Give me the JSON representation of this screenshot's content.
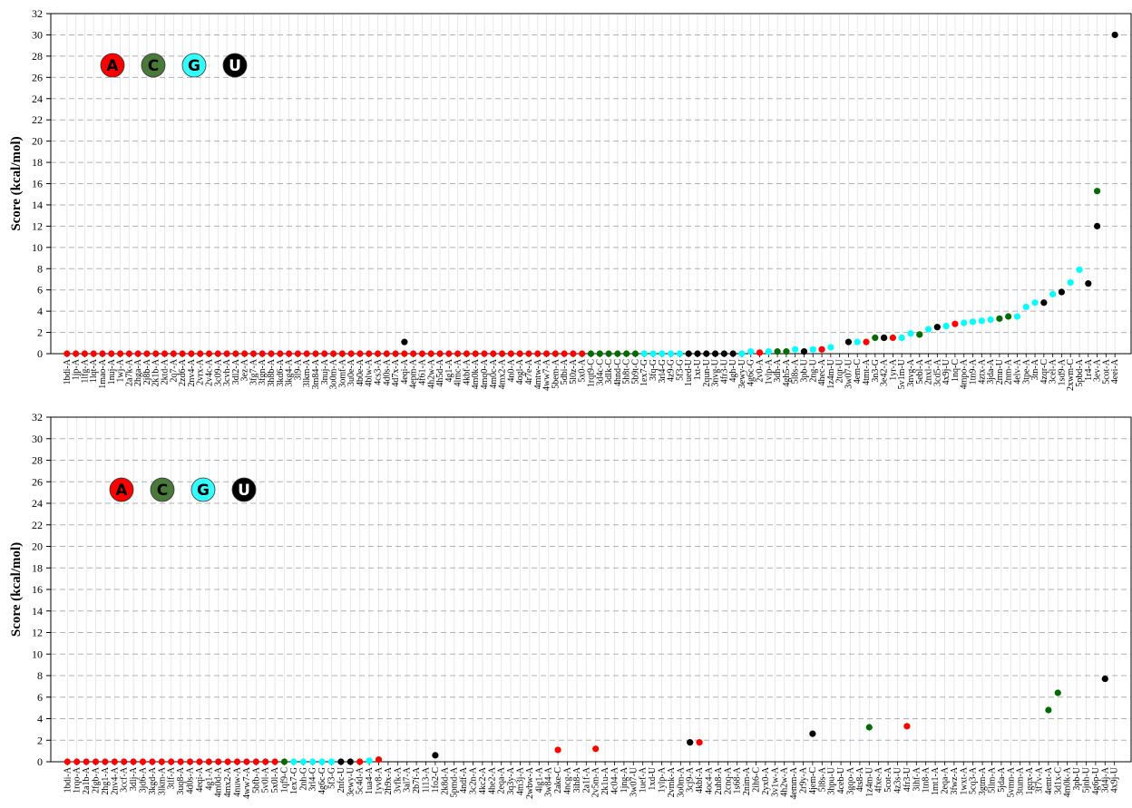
{
  "colors": {
    "A": "#ff0000",
    "C": "#006b00",
    "G": "#00ffff",
    "U": "#000000"
  },
  "legend": {
    "items": [
      {
        "label": "A",
        "color": "#ff0000",
        "text_color": "#000000"
      },
      {
        "label": "C",
        "color": "#4a7a3a",
        "text_color": "#000000"
      },
      {
        "label": "G",
        "color": "#33ffff",
        "text_color": "#000000"
      },
      {
        "label": "U",
        "color": "#000000",
        "text_color": "#ffffff"
      }
    ]
  },
  "chart_data": [
    {
      "type": "scatter",
      "ylabel": "Score (kcal/mol)",
      "ylim": [
        0,
        32
      ],
      "yticks": [
        0,
        2,
        4,
        6,
        8,
        10,
        12,
        14,
        16,
        18,
        20,
        22,
        24,
        26,
        28,
        30,
        32
      ],
      "grid": "horizontal dashed",
      "legend_position": "top-left",
      "categories": [
        "1bdi-A",
        "1jp-A",
        "1lfg-A",
        "1lqt-A",
        "1mao-A",
        "1nuj-A",
        "1wj-A",
        "2a7k-A",
        "2hga-A",
        "2j8b-A",
        "2k1b-A",
        "2ktd-A",
        "2q7-A",
        "2zd6-A",
        "2nv4-A",
        "2vrx-A",
        "2v4c-A",
        "3c09-A",
        "3cvh-A",
        "3dl2-A",
        "3ez-A",
        "3fg7-A",
        "3fgn-A",
        "3h8b-A",
        "3kd6-A",
        "3kg4-A",
        "3l9-A",
        "3lkm-A",
        "3m84-A",
        "3nuj-A",
        "3o0m-A",
        "3omf-A",
        "3u0e-A",
        "4b0e-A",
        "4blw-A",
        "4cs3-A",
        "4d0s-A",
        "4d7x-A",
        "4eqi-A",
        "4epm-A",
        "4f61-A",
        "4h2w-A",
        "4h5d-A",
        "4g1-A",
        "4lmc-A",
        "4kbf-A",
        "4m0k-A",
        "4mq0-A",
        "4m0c-A",
        "4mx2-A",
        "4n0-A",
        "4ogl-A",
        "4r7e-A",
        "4mtw-A",
        "4ww7-A",
        "5bem-A",
        "5dbi-A",
        "5l0z-A",
        "5x0-A",
        "1rqt9-C",
        "3d4c-C",
        "3dlk-C",
        "4hnd-C",
        "5h8t-C",
        "5b9t-C",
        "1ex7-G",
        "3fq-G",
        "3rl4-G",
        "4z9-G",
        "5f3-G",
        "1ued-U",
        "1xt-U",
        "2qun-U",
        "3nvg-U",
        "4fr3-U",
        "4gh-U",
        "3ewy-U",
        "4g6c-G",
        "2v0-A",
        "1vlp-A",
        "3dh-A",
        "4gh5-A",
        "5l8s-A",
        "3pb-U",
        "2ng-U",
        "4hec-A",
        "1z4m-U",
        "2tqr-U",
        "3w07-U",
        "4em-C",
        "4tmt-A",
        "3n3-G",
        "3e42-A",
        "1yr-A",
        "5v1m-U",
        "3nvg-A",
        "5ebl-A",
        "2nxl-A",
        "3cd5-A",
        "4x9j-U",
        "1nq-C",
        "4mpo-A",
        "1tn9-A",
        "4ztx-A",
        "3jda-A",
        "2mn-U",
        "2nm-A",
        "4elv-A",
        "3tpe-A",
        "3tn-A",
        "4zqr-C",
        "3cel-A",
        "1sd9-A",
        "2xwm-C",
        "5pbd-A",
        "1r4-A",
        "3ev-A",
        "5cot-A",
        "4eei-A"
      ],
      "series": [
        {
          "name": "A",
          "color": "#ff0000",
          "points": [
            {
              "x": "1bdi-A",
              "y": 0
            },
            {
              "x": "1jp-A",
              "y": 0
            },
            {
              "x": "1lfg-A",
              "y": 0
            },
            {
              "x": "1lqt-A",
              "y": 0
            },
            {
              "x": "1mao-A",
              "y": 0
            },
            {
              "x": "1nuj-A",
              "y": 0
            },
            {
              "x": "1wj-A",
              "y": 0
            },
            {
              "x": "2a7k-A",
              "y": 0
            },
            {
              "x": "2hga-A",
              "y": 0
            },
            {
              "x": "2j8b-A",
              "y": 0
            },
            {
              "x": "2k1b-A",
              "y": 0
            },
            {
              "x": "2ktd-A",
              "y": 0
            },
            {
              "x": "2q7-A",
              "y": 0
            },
            {
              "x": "2zd6-A",
              "y": 0
            },
            {
              "x": "2nv4-A",
              "y": 0
            },
            {
              "x": "2vrx-A",
              "y": 0
            },
            {
              "x": "2v4c-A",
              "y": 0
            },
            {
              "x": "3c09-A",
              "y": 0
            },
            {
              "x": "3cvh-A",
              "y": 0
            },
            {
              "x": "3dl2-A",
              "y": 0
            },
            {
              "x": "3ez-A",
              "y": 0
            },
            {
              "x": "3fg7-A",
              "y": 0
            },
            {
              "x": "3fgn-A",
              "y": 0
            },
            {
              "x": "3h8b-A",
              "y": 0
            },
            {
              "x": "3kd6-A",
              "y": 0
            },
            {
              "x": "3kg4-A",
              "y": 0
            },
            {
              "x": "3l9-A",
              "y": 0
            },
            {
              "x": "3lkm-A",
              "y": 0
            },
            {
              "x": "3m84-A",
              "y": 0
            },
            {
              "x": "3nuj-A",
              "y": 0
            },
            {
              "x": "3o0m-A",
              "y": 0
            },
            {
              "x": "3omf-A",
              "y": 0
            },
            {
              "x": "3u0e-A",
              "y": 0
            },
            {
              "x": "4b0e-A",
              "y": 0
            },
            {
              "x": "4blw-A",
              "y": 0
            },
            {
              "x": "4cs3-A",
              "y": 0
            },
            {
              "x": "4d0s-A",
              "y": 0
            },
            {
              "x": "4d7x-A",
              "y": 0
            },
            {
              "x": "4eqi-A",
              "y": 0
            },
            {
              "x": "4epm-A",
              "y": 0
            },
            {
              "x": "4f61-A",
              "y": 0
            },
            {
              "x": "4h2w-A",
              "y": 0
            },
            {
              "x": "4h5d-A",
              "y": 0
            },
            {
              "x": "4g1-A",
              "y": 0
            },
            {
              "x": "4lmc-A",
              "y": 0
            },
            {
              "x": "4kbf-A",
              "y": 0
            },
            {
              "x": "4m0k-A",
              "y": 0
            },
            {
              "x": "4mq0-A",
              "y": 0
            },
            {
              "x": "4m0c-A",
              "y": 0
            },
            {
              "x": "4mx2-A",
              "y": 0
            },
            {
              "x": "4n0-A",
              "y": 0
            },
            {
              "x": "4ogl-A",
              "y": 0
            },
            {
              "x": "4r7e-A",
              "y": 0
            },
            {
              "x": "4mtw-A",
              "y": 0
            },
            {
              "x": "4ww7-A",
              "y": 0
            },
            {
              "x": "5bem-A",
              "y": 0
            },
            {
              "x": "5dbi-A",
              "y": 0
            },
            {
              "x": "5l0z-A",
              "y": 0
            },
            {
              "x": "5x0-A",
              "y": 0
            },
            {
              "x": "2v0-A",
              "y": 0.1
            },
            {
              "x": "4hec-A",
              "y": 0.4
            },
            {
              "x": "4tmt-A",
              "y": 1.1
            },
            {
              "x": "3e42-A",
              "y": 1.5
            },
            {
              "x": "1yr-A",
              "y": 1.5
            },
            {
              "x": "1nq-C",
              "y": 2.8
            }
          ]
        },
        {
          "name": "C",
          "color": "#006b00",
          "points": [
            {
              "x": "1rqt9-C",
              "y": 0
            },
            {
              "x": "3d4c-C",
              "y": 0
            },
            {
              "x": "3dlk-C",
              "y": 0
            },
            {
              "x": "4hnd-C",
              "y": 0
            },
            {
              "x": "5h8t-C",
              "y": 0
            },
            {
              "x": "5b9t-C",
              "y": 0
            },
            {
              "x": "3dh-A",
              "y": 0.2
            },
            {
              "x": "4gh5-A",
              "y": 0.2
            },
            {
              "x": "3n3-G",
              "y": 1.5
            },
            {
              "x": "5ebl-A",
              "y": 1.8
            },
            {
              "x": "2mn-U",
              "y": 3.3
            },
            {
              "x": "2nm-A",
              "y": 3.5
            },
            {
              "x": "3ev-A",
              "y": 15.3
            }
          ]
        },
        {
          "name": "G",
          "color": "#00ffff",
          "points": [
            {
              "x": "1ex7-G",
              "y": 0
            },
            {
              "x": "3fq-G",
              "y": 0
            },
            {
              "x": "3rl4-G",
              "y": 0
            },
            {
              "x": "4z9-G",
              "y": 0
            },
            {
              "x": "5f3-G",
              "y": 0
            },
            {
              "x": "3ewy-U",
              "y": 0
            },
            {
              "x": "4g6c-G",
              "y": 0.2
            },
            {
              "x": "1vlp-A",
              "y": 0.2
            },
            {
              "x": "5l8s-A",
              "y": 0.4
            },
            {
              "x": "2ng-U",
              "y": 0.4
            },
            {
              "x": "1z4m-U",
              "y": 0.6
            },
            {
              "x": "4em-C",
              "y": 1.1
            },
            {
              "x": "5v1m-U",
              "y": 1.5
            },
            {
              "x": "3nvg-A",
              "y": 1.9
            },
            {
              "x": "2nxl-A",
              "y": 2.3
            },
            {
              "x": "3cd5-A",
              "y": 2.5
            },
            {
              "x": "4x9j-U",
              "y": 2.6
            },
            {
              "x": "4mpo-A",
              "y": 2.9
            },
            {
              "x": "1tn9-A",
              "y": 3.0
            },
            {
              "x": "4ztx-A",
              "y": 3.1
            },
            {
              "x": "3jda-A",
              "y": 3.2
            },
            {
              "x": "4elv-A",
              "y": 3.5
            },
            {
              "x": "3tpe-A",
              "y": 4.4
            },
            {
              "x": "3tn-A",
              "y": 4.8
            },
            {
              "x": "3cel-A",
              "y": 5.6
            },
            {
              "x": "2xwm-C",
              "y": 6.7
            },
            {
              "x": "5pbd-A",
              "y": 7.9
            }
          ]
        },
        {
          "name": "U",
          "color": "#000000",
          "points": [
            {
              "x": "1ued-U",
              "y": 0
            },
            {
              "x": "1xt-U",
              "y": 0
            },
            {
              "x": "2qun-U",
              "y": 0
            },
            {
              "x": "3nvg-U",
              "y": 0
            },
            {
              "x": "4fr3-U",
              "y": 0
            },
            {
              "x": "4gh-U",
              "y": 0
            },
            {
              "x": "3pb-U",
              "y": 0.2
            },
            {
              "x": "3w07-U",
              "y": 1.1
            },
            {
              "x": "4eqi-A",
              "y": 1.1
            },
            {
              "x": "3e42-A",
              "y": 1.5
            },
            {
              "x": "3cd5-A",
              "y": 2.5
            },
            {
              "x": "4zqr-C",
              "y": 4.8
            },
            {
              "x": "1sd9-A",
              "y": 5.8
            },
            {
              "x": "1r4-A",
              "y": 6.6
            },
            {
              "x": "3ev-A",
              "y": 12.0
            },
            {
              "x": "4eei-A",
              "y": 30.0
            }
          ]
        }
      ]
    },
    {
      "type": "scatter",
      "ylabel": "Score (kcal/mol)",
      "ylim": [
        0,
        32
      ],
      "yticks": [
        0,
        2,
        4,
        6,
        8,
        10,
        12,
        14,
        16,
        18,
        20,
        22,
        24,
        26,
        28,
        30,
        32
      ],
      "grid": "horizontal dashed",
      "legend_position": "top-left",
      "categories": [
        "1bdi-A",
        "1rqo-A",
        "2a1b-A",
        "2fgb-A",
        "2hg1-A",
        "2nv4-A",
        "3ccf-A",
        "3dlj-A",
        "3jd6-A",
        "3kgd-A",
        "3lkm-A",
        "3tlf-A",
        "3uq8-A",
        "4d0s-A",
        "4eqi-A",
        "4g1-A",
        "4m0d-A",
        "4mx2-A",
        "4nuw-A",
        "4ww7-A",
        "5bfb-A",
        "5v0l-A",
        "5x0l-A",
        "1qf9-C",
        "1ex7-G",
        "2nh-G",
        "3rl4-G",
        "4g6c-G",
        "5f3-G",
        "2nfc-U",
        "3ewy-U",
        "5c4d-A",
        "1ua4-A",
        "1yv8-A",
        "2h9x-A",
        "3vfk-A",
        "3al7-A",
        "2b7f-A",
        "1i13-A",
        "1fo2-C",
        "2k8d-A",
        "5pmd-A",
        "4ndf-A",
        "3c2n-A",
        "4kc2-A",
        "4he2-A",
        "2eqa-A",
        "3q3y-A",
        "4m3j-A",
        "2wbw-A",
        "4lg1-A",
        "3w84-A",
        "2ake-C",
        "4ncg-A",
        "3ih8-A",
        "2a1f-A",
        "2v5m-A",
        "2k1u-A",
        "4c04-A",
        "1jng-A",
        "3w07-U",
        "1uef-A",
        "1xd-U",
        "1ylp-A",
        "2vmk-A",
        "3o0m-A",
        "3cj9-A",
        "4kbf-A",
        "4oc4-A",
        "2uh8-A",
        "2cnq-A",
        "1s68-A",
        "2nim-A",
        "2ih6-C",
        "2yx0-A",
        "3v1w-A",
        "4h2w-A",
        "4emm-A",
        "2r9y-A",
        "4jem-C",
        "5l8s-A",
        "3hpu-U",
        "4ceb-U",
        "3gqo-A",
        "4ts8-A",
        "1z4m-U",
        "4fxe-A",
        "5cot-A",
        "4z3s-U",
        "4fr3-U",
        "3ihf-A",
        "1tn8-A",
        "1mt1-A",
        "2eqa-A",
        "3fwz-A",
        "1wxt-A",
        "5cq3-A",
        "3gtm-A",
        "5llm-A",
        "5jda-A",
        "5vmn-A",
        "3tum-A",
        "1gqx-A",
        "3f7v-A",
        "4emt-A",
        "3d1x-C",
        "4m0k-A",
        "3pb-U",
        "5jnh-U",
        "4g6p-U",
        "3d4j-A",
        "4x9j-U"
      ],
      "series": [
        {
          "name": "A",
          "color": "#ff0000",
          "points": [
            {
              "x": "1bdi-A",
              "y": 0
            },
            {
              "x": "1rqo-A",
              "y": 0
            },
            {
              "x": "2a1b-A",
              "y": 0
            },
            {
              "x": "2fgb-A",
              "y": 0
            },
            {
              "x": "2hg1-A",
              "y": 0
            },
            {
              "x": "2nv4-A",
              "y": 0
            },
            {
              "x": "3ccf-A",
              "y": 0
            },
            {
              "x": "3dlj-A",
              "y": 0
            },
            {
              "x": "3jd6-A",
              "y": 0
            },
            {
              "x": "3kgd-A",
              "y": 0
            },
            {
              "x": "3lkm-A",
              "y": 0
            },
            {
              "x": "3tlf-A",
              "y": 0
            },
            {
              "x": "3uq8-A",
              "y": 0
            },
            {
              "x": "4d0s-A",
              "y": 0
            },
            {
              "x": "4eqi-A",
              "y": 0
            },
            {
              "x": "4g1-A",
              "y": 0
            },
            {
              "x": "4m0d-A",
              "y": 0
            },
            {
              "x": "4mx2-A",
              "y": 0
            },
            {
              "x": "4nuw-A",
              "y": 0
            },
            {
              "x": "4ww7-A",
              "y": 0
            },
            {
              "x": "5bfb-A",
              "y": 0
            },
            {
              "x": "5v0l-A",
              "y": 0
            },
            {
              "x": "5x0l-A",
              "y": 0
            },
            {
              "x": "5c4d-A",
              "y": 0
            },
            {
              "x": "1yv8-A",
              "y": 0.2
            },
            {
              "x": "2ake-C",
              "y": 1.1
            },
            {
              "x": "2v5m-A",
              "y": 1.2
            },
            {
              "x": "4kbf-A",
              "y": 1.8
            },
            {
              "x": "4fr3-U",
              "y": 3.3
            }
          ]
        },
        {
          "name": "C",
          "color": "#006b00",
          "points": [
            {
              "x": "1qf9-C",
              "y": 0
            },
            {
              "x": "3ceb-U",
              "y": 2.9
            },
            {
              "x": "1z4m-U",
              "y": 3.2
            },
            {
              "x": "4emt-A",
              "y": 4.8
            },
            {
              "x": "3d1x-C",
              "y": 6.4
            }
          ]
        },
        {
          "name": "G",
          "color": "#00ffff",
          "points": [
            {
              "x": "1ex7-G",
              "y": 0
            },
            {
              "x": "2nh-G",
              "y": 0
            },
            {
              "x": "3rl4-G",
              "y": 0
            },
            {
              "x": "4g6c-G",
              "y": 0
            },
            {
              "x": "5f3-G",
              "y": 0
            },
            {
              "x": "1ua4-A",
              "y": 0.1
            }
          ]
        },
        {
          "name": "U",
          "color": "#000000",
          "points": [
            {
              "x": "2nfc-U",
              "y": 0
            },
            {
              "x": "3ewy-U",
              "y": 0
            },
            {
              "x": "1fo2-C",
              "y": 0.6
            },
            {
              "x": "3cj9-A",
              "y": 1.8
            },
            {
              "x": "4jem-C",
              "y": 2.6
            },
            {
              "x": "3d4j-A",
              "y": 7.7
            }
          ]
        }
      ]
    }
  ]
}
